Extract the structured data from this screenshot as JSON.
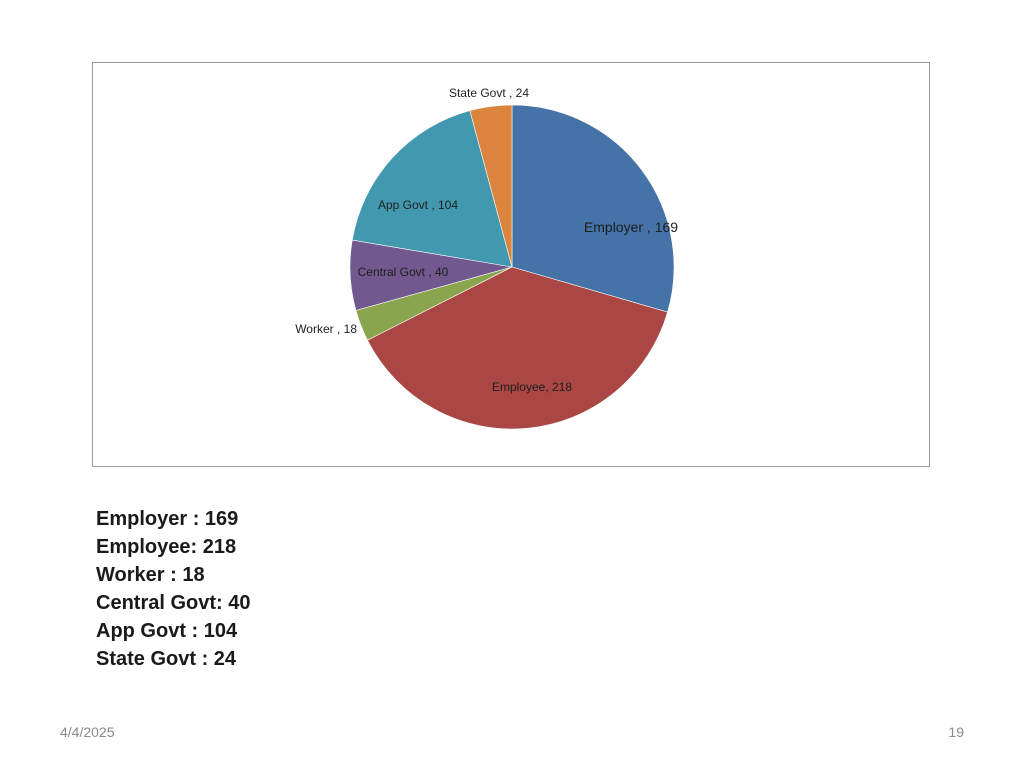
{
  "chart_data": {
    "type": "pie",
    "title": "",
    "start_angle_deg": 0,
    "direction": "clockwise",
    "data_label_format": "{category} , {value}",
    "slices": [
      {
        "label": "Employer",
        "value": 169,
        "color": "#4572A7",
        "data_label": "Employer , 169"
      },
      {
        "label": "Employee",
        "value": 218,
        "color": "#AA4643",
        "data_label": "Employee, 218"
      },
      {
        "label": "Worker",
        "value": 18,
        "color": "#89A54E",
        "data_label": "Worker , 18"
      },
      {
        "label": "Central Govt",
        "value": 40,
        "color": "#71588F",
        "data_label": "Central Govt , 40"
      },
      {
        "label": "App Govt",
        "value": 104,
        "color": "#4198AF",
        "data_label": "App Govt , 104"
      },
      {
        "label": "State Govt",
        "value": 24,
        "color": "#DB843D",
        "data_label": "State Govt , 24"
      }
    ]
  },
  "summary": {
    "lines": [
      "Employer : 169",
      "Employee: 218",
      "Worker : 18",
      "Central Govt: 40",
      "App Govt : 104",
      "State Govt : 24"
    ]
  },
  "footer": {
    "date": "4/4/2025",
    "page_number": "19"
  }
}
